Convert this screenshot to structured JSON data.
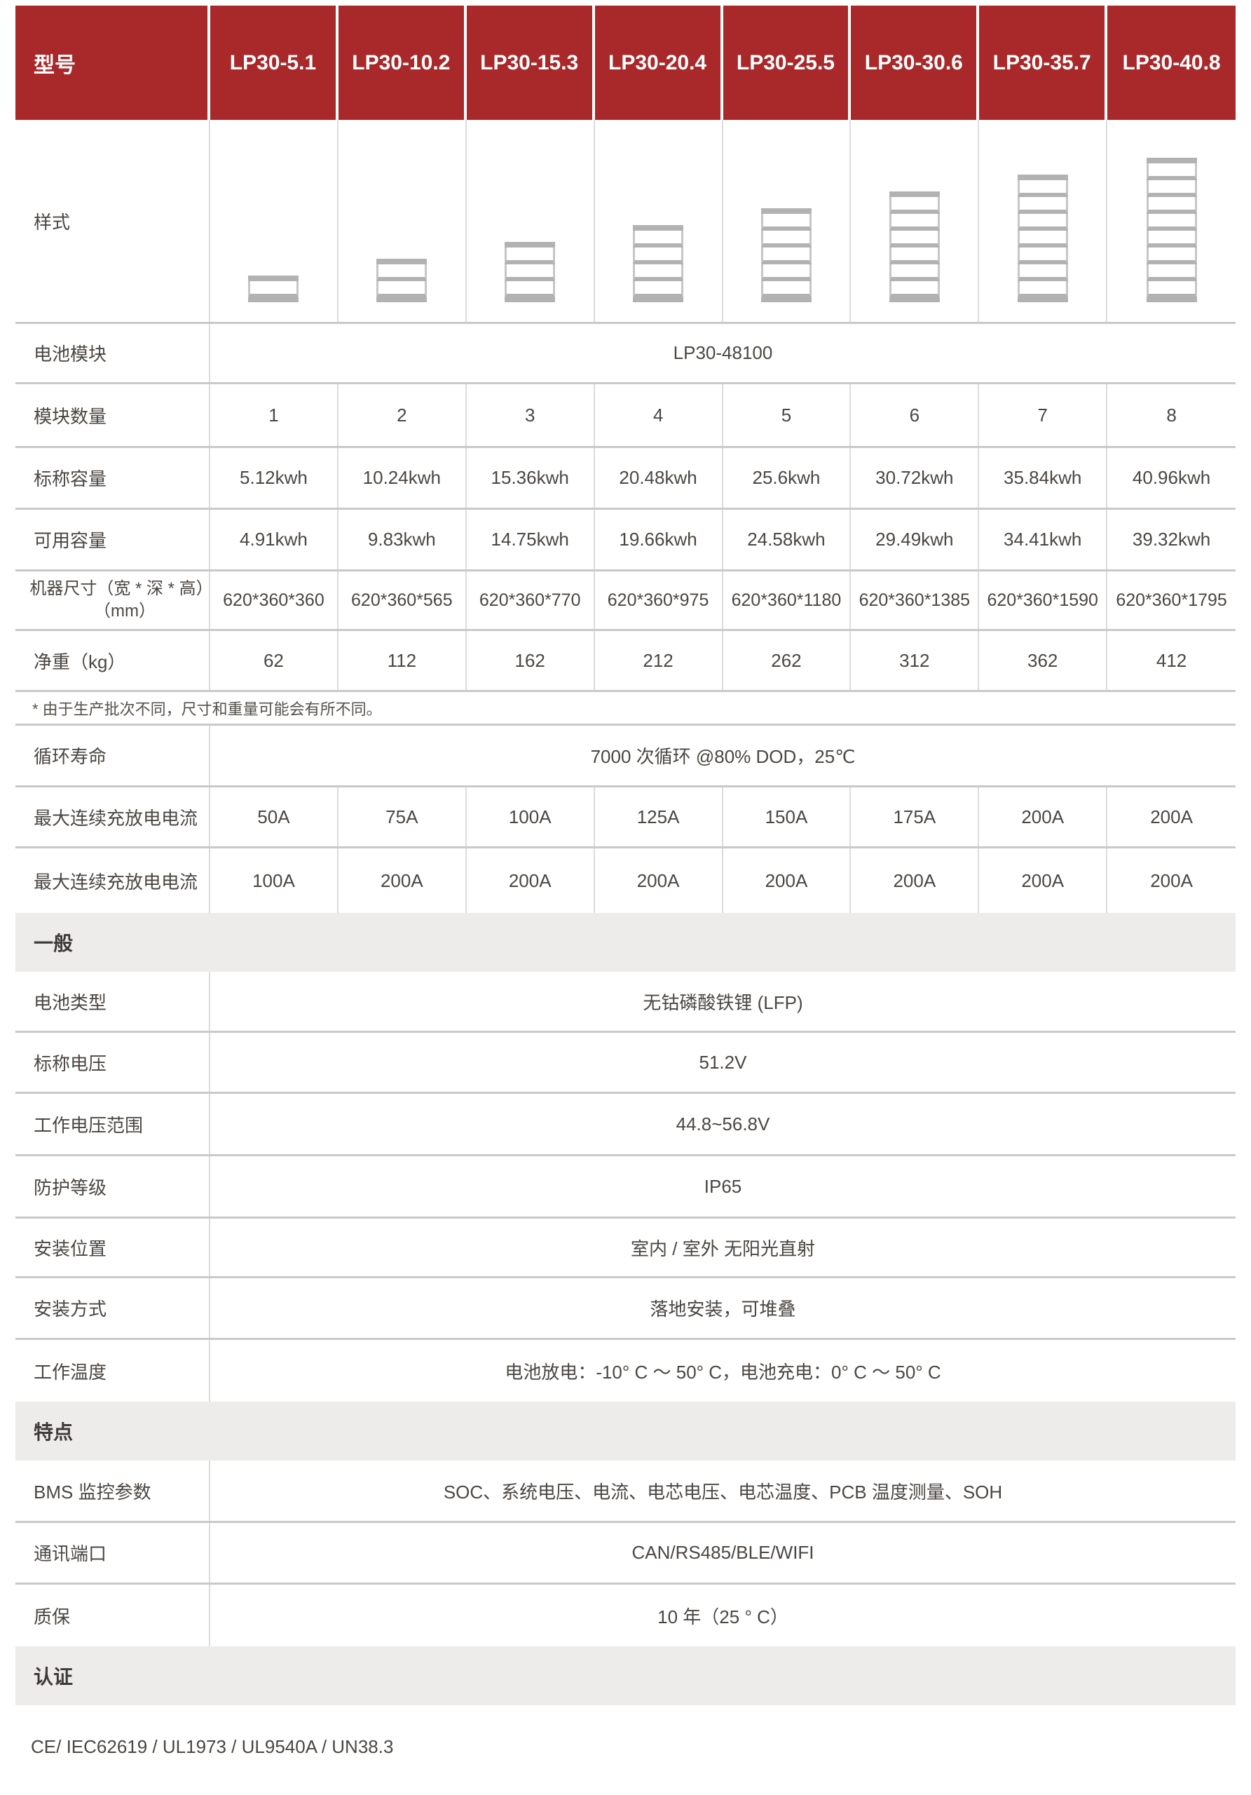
{
  "header": {
    "label": "型号",
    "models": [
      "LP30-5.1",
      "LP30-10.2",
      "LP30-15.3",
      "LP30-20.4",
      "LP30-25.5",
      "LP30-30.6",
      "LP30-35.7",
      "LP30-40.8"
    ]
  },
  "style_row": {
    "label": "样式",
    "module_counts": [
      1,
      2,
      3,
      4,
      5,
      6,
      7,
      8
    ]
  },
  "rows": {
    "battery_module": {
      "label": "电池模块",
      "value": "LP30-48100"
    },
    "module_qty": {
      "label": "模块数量",
      "values": [
        "1",
        "2",
        "3",
        "4",
        "5",
        "6",
        "7",
        "8"
      ]
    },
    "nominal_capacity": {
      "label": "标称容量",
      "values": [
        "5.12kwh",
        "10.24kwh",
        "15.36kwh",
        "20.48kwh",
        "25.6kwh",
        "30.72kwh",
        "35.84kwh",
        "40.96kwh"
      ]
    },
    "usable_capacity": {
      "label": "可用容量",
      "values": [
        "4.91kwh",
        "9.83kwh",
        "14.75kwh",
        "19.66kwh",
        "24.58kwh",
        "29.49kwh",
        "34.41kwh",
        "39.32kwh"
      ]
    },
    "dimensions": {
      "label_line1": "机器尺寸（宽 * 深 * 高）",
      "label_line2": "（mm）",
      "values": [
        "620*360*360",
        "620*360*565",
        "620*360*770",
        "620*360*975",
        "620*360*1180",
        "620*360*1385",
        "620*360*1590",
        "620*360*1795"
      ]
    },
    "net_weight": {
      "label": "净重（kg）",
      "values": [
        "62",
        "112",
        "162",
        "212",
        "262",
        "312",
        "362",
        "412"
      ]
    },
    "note": "* 由于生产批次不同，尺寸和重量可能会有所不同。",
    "cycle_life": {
      "label": "循环寿命",
      "value": "7000 次循环 @80% DOD，25℃"
    },
    "max_current_1": {
      "label": "最大连续充放电电流",
      "values": [
        "50A",
        "75A",
        "100A",
        "125A",
        "150A",
        "175A",
        "200A",
        "200A"
      ]
    },
    "max_current_2": {
      "label": "最大连续充放电电流",
      "values": [
        "100A",
        "200A",
        "200A",
        "200A",
        "200A",
        "200A",
        "200A",
        "200A"
      ]
    },
    "battery_type": {
      "label": "电池类型",
      "value": "无钴磷酸铁锂 (LFP)"
    },
    "nominal_voltage": {
      "label": "标称电压",
      "value": "51.2V"
    },
    "voltage_range": {
      "label": "工作电压范围",
      "value": "44.8~56.8V"
    },
    "protection": {
      "label": "防护等级",
      "value": "IP65"
    },
    "install_location": {
      "label": "安装位置",
      "value": "室内 / 室外 无阳光直射"
    },
    "install_method": {
      "label": "安装方式",
      "value": "落地安装，可堆叠"
    },
    "work_temp": {
      "label": "工作温度",
      "value": "电池放电：-10° C ～ 50° C，电池充电：0° C ～ 50° C"
    },
    "bms": {
      "label": "BMS 监控参数",
      "value": "SOC、系统电压、电流、电芯电压、电芯温度、PCB 温度测量、SOH"
    },
    "comm_port": {
      "label": "通讯端口",
      "value": "CAN/RS485/BLE/WIFI"
    },
    "warranty": {
      "label": "质保",
      "value": "10 年（25 ° C）"
    }
  },
  "sections": {
    "general": "一般",
    "features": "特点",
    "certification": "认证"
  },
  "certifications_text": "CE/ IEC62619 / UL1973 / UL9540A / UN38.3",
  "colors": {
    "header_red": "#a9282a",
    "row_divider": "#c9c9c9",
    "column_divider": "#dcdcdc",
    "section_band": "#eeeceb",
    "module_gray": "#b2b2b2",
    "text": "#4b4642"
  }
}
